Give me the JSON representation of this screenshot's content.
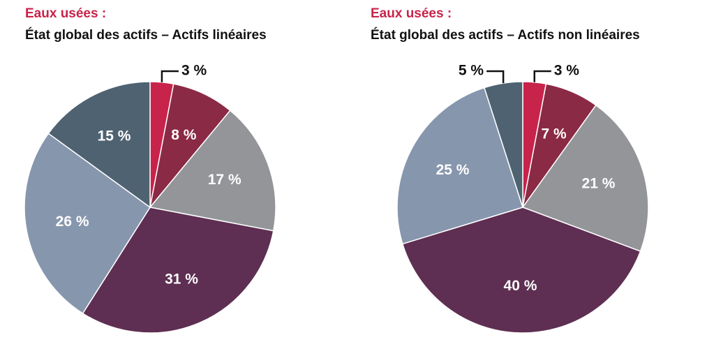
{
  "chart_data": [
    {
      "type": "pie",
      "title": "Eaux usées :",
      "subtitle": "État global des actifs – Actifs linéaires",
      "values": [
        3,
        8,
        17,
        31,
        26,
        15
      ],
      "value_labels": [
        "3 %",
        "8 %",
        "17 %",
        "31 %",
        "26 %",
        "15 %"
      ],
      "colors": [
        "#c8234a",
        "#8b2a45",
        "#939598",
        "#5e2f52",
        "#8696ad",
        "#4f6271"
      ]
    },
    {
      "type": "pie",
      "title": "Eaux usées :",
      "subtitle": "État global des actifs – Actifs non linéaires",
      "values": [
        3,
        7,
        21,
        40,
        25,
        5
      ],
      "value_labels": [
        "3 %",
        "7 %",
        "21 %",
        "40 %",
        "25 %",
        "5 %"
      ],
      "colors": [
        "#c8234a",
        "#8b2a45",
        "#939598",
        "#5e2f52",
        "#8696ad",
        "#4f6271"
      ]
    }
  ]
}
